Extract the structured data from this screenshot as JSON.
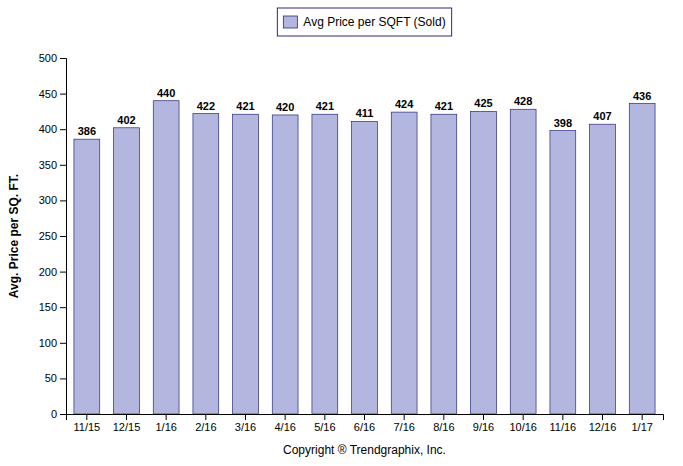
{
  "chart_data": {
    "type": "bar",
    "categories": [
      "11/15",
      "12/15",
      "1/16",
      "2/16",
      "3/16",
      "4/16",
      "5/16",
      "6/16",
      "7/16",
      "8/16",
      "9/16",
      "10/16",
      "11/16",
      "12/16",
      "1/17"
    ],
    "series": [
      {
        "name": "Avg Price per SQFT (Sold)",
        "color": "#b3b7e0",
        "values": [
          386,
          402,
          440,
          422,
          421,
          420,
          421,
          411,
          424,
          421,
          425,
          428,
          398,
          407,
          436
        ]
      }
    ],
    "xlabel": "Copyright ® Trendgraphix, Inc.",
    "ylabel": "Avg. Price per SQ. FT.",
    "ylim": [
      0,
      500
    ],
    "yticks": [
      0,
      50,
      100,
      150,
      200,
      250,
      300,
      350,
      400,
      450,
      500
    ],
    "grid": false,
    "legend": "top",
    "data_labels": true
  }
}
